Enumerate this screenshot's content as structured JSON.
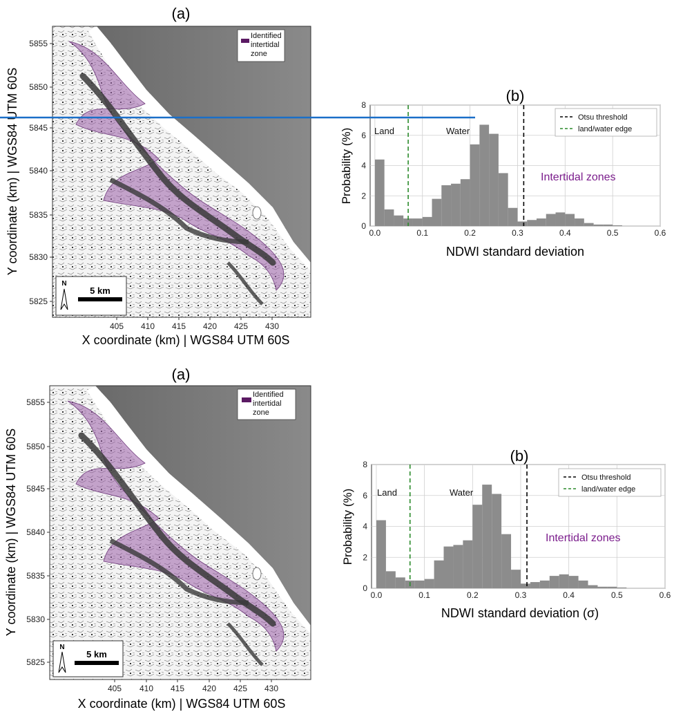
{
  "colors": {
    "intertidal": "#9a5fa8",
    "legend_swatch": "#5b1a63",
    "histogram_bar": "#8c8c8c",
    "otsu_line": "#000000",
    "edge_line": "#2a8a2a",
    "annotation_purple": "#7b1d8c",
    "overlay_line": "#1a6fc8"
  },
  "panels": [
    {
      "map": {
        "title": "(a)",
        "legend_label": "Identified\nintertidal\nzone",
        "legend_lines": [
          "Identified",
          "intertidal",
          "zone"
        ],
        "xlabel": "X coordinate (km) | WGS84 UTM 60S",
        "ylabel": "Y coordinate (km) | WGS84 UTM 60S",
        "xticks": [
          "405",
          "410",
          "415",
          "420",
          "425",
          "430"
        ],
        "yticks": [
          "5855",
          "5850",
          "5845",
          "5840",
          "5835",
          "5830",
          "5825"
        ],
        "north_label": "N",
        "scale_label": "5 km"
      },
      "hist": {
        "title": "(b)",
        "xlabel": "NDWI standard deviation",
        "ylabel": "Probability (%)",
        "legend": [
          "Otsu threshold",
          "land/water edge"
        ],
        "annotations": {
          "land": "Land",
          "water": "Water",
          "tidal": "Intertidal zones"
        }
      }
    },
    {
      "map": {
        "title": "(a)",
        "legend_label": "Identified\nintertidal\nzone",
        "legend_lines": [
          "Identified",
          "intertidal",
          "zone"
        ],
        "xlabel": "X coordinate (km) | WGS84 UTM 60S",
        "ylabel": "Y coordinate (km) | WGS84 UTM 60S",
        "xticks": [
          "405",
          "410",
          "415",
          "420",
          "425",
          "430"
        ],
        "yticks": [
          "5855",
          "5850",
          "5845",
          "5840",
          "5835",
          "5830",
          "5825"
        ],
        "north_label": "N",
        "scale_label": "5 km"
      },
      "hist": {
        "title": "(b)",
        "xlabel": "NDWI standard deviation (σ)",
        "ylabel": "Probability (%)",
        "legend": [
          "Otsu threshold",
          "land/water edge"
        ],
        "annotations": {
          "land": "Land",
          "water": "Water",
          "tidal": "Intertidal zones"
        }
      }
    }
  ],
  "chart_data": [
    {
      "type": "bar",
      "title": "(b)",
      "xlabel": "NDWI standard deviation",
      "ylabel": "Probability (%)",
      "bin_width": 0.02,
      "x": [
        0.0,
        0.02,
        0.04,
        0.06,
        0.08,
        0.1,
        0.12,
        0.14,
        0.16,
        0.18,
        0.2,
        0.22,
        0.24,
        0.26,
        0.28,
        0.3,
        0.32,
        0.34,
        0.36,
        0.38,
        0.4,
        0.42,
        0.44,
        0.46,
        0.48,
        0.5
      ],
      "values": [
        4.4,
        1.1,
        0.7,
        0.5,
        0.5,
        0.6,
        1.8,
        2.7,
        2.8,
        3.1,
        5.4,
        6.7,
        6.1,
        3.5,
        1.2,
        0.3,
        0.4,
        0.5,
        0.8,
        0.9,
        0.8,
        0.5,
        0.2,
        0.1,
        0.1,
        0.05
      ],
      "xticks": [
        "0.0",
        "0.1",
        "0.2",
        "0.3",
        "0.4",
        "0.5",
        "0.6"
      ],
      "yticks": [
        "0",
        "2",
        "4",
        "6",
        "8"
      ],
      "xlim": [
        -0.01,
        0.6
      ],
      "ylim": [
        0,
        8
      ],
      "vlines": [
        {
          "name": "Otsu threshold",
          "x": 0.313,
          "style": "dashed",
          "color": "#000000"
        },
        {
          "name": "land/water edge",
          "x": 0.07,
          "style": "dashed",
          "color": "#2a8a2a"
        }
      ],
      "grid": true,
      "legend": "top-right"
    },
    {
      "type": "bar",
      "title": "(b)",
      "xlabel": "NDWI standard deviation (σ)",
      "ylabel": "Probability (%)",
      "bin_width": 0.02,
      "x": [
        0.0,
        0.02,
        0.04,
        0.06,
        0.08,
        0.1,
        0.12,
        0.14,
        0.16,
        0.18,
        0.2,
        0.22,
        0.24,
        0.26,
        0.28,
        0.3,
        0.32,
        0.34,
        0.36,
        0.38,
        0.4,
        0.42,
        0.44,
        0.46,
        0.48,
        0.5
      ],
      "values": [
        4.4,
        1.1,
        0.7,
        0.5,
        0.5,
        0.6,
        1.8,
        2.7,
        2.8,
        3.1,
        5.4,
        6.7,
        6.1,
        3.5,
        1.2,
        0.3,
        0.4,
        0.5,
        0.8,
        0.9,
        0.8,
        0.5,
        0.2,
        0.1,
        0.1,
        0.05
      ],
      "xticks": [
        "0.0",
        "0.1",
        "0.2",
        "0.3",
        "0.4",
        "0.5",
        "0.6"
      ],
      "yticks": [
        "0",
        "2",
        "4",
        "6",
        "8"
      ],
      "xlim": [
        -0.01,
        0.6
      ],
      "ylim": [
        0,
        8
      ],
      "vlines": [
        {
          "name": "Otsu threshold",
          "x": 0.313,
          "style": "dashed",
          "color": "#000000"
        },
        {
          "name": "land/water edge",
          "x": 0.07,
          "style": "dashed",
          "color": "#2a8a2a"
        }
      ],
      "grid": true,
      "legend": "top-right"
    }
  ]
}
